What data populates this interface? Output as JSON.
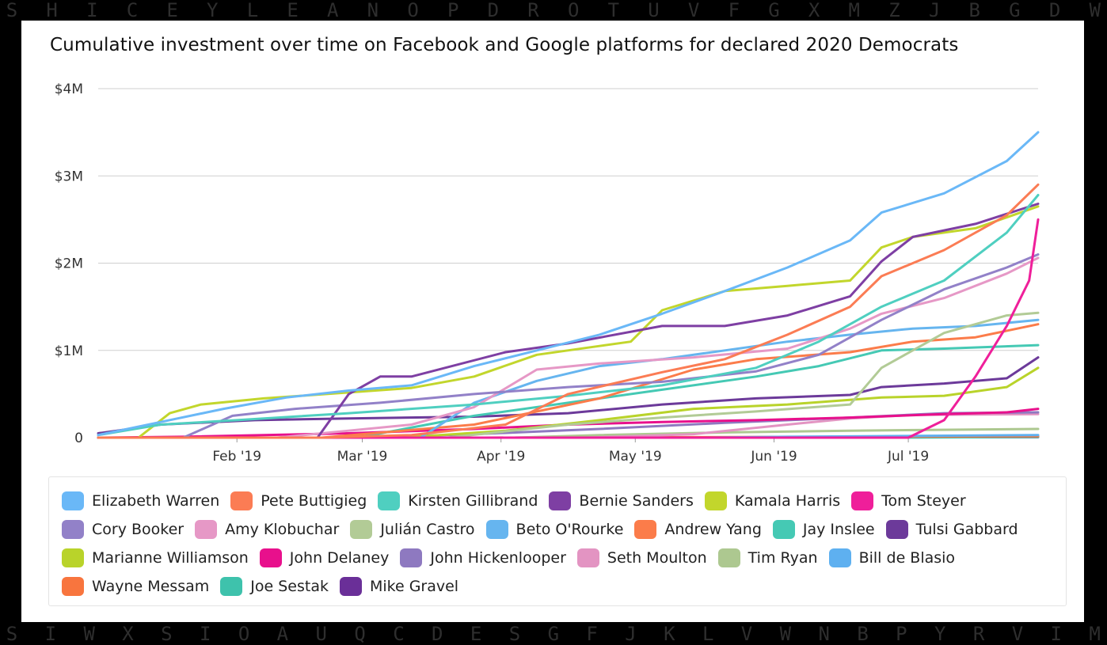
{
  "background": {
    "top_letters": [
      "S",
      "H",
      "I",
      "C",
      "E",
      "Y",
      "L",
      "E",
      "A",
      "N",
      "O",
      "P",
      "D",
      "R",
      "O",
      "T",
      "U",
      "V",
      "F",
      "G",
      "X",
      "M",
      "Z",
      "J",
      "B",
      "G",
      "D",
      "W"
    ],
    "bottom_letters": [
      "S",
      "I",
      "W",
      "X",
      "S",
      "I",
      "O",
      "A",
      "U",
      "Q",
      "C",
      "D",
      "E",
      "S",
      "G",
      "F",
      "J",
      "K",
      "L",
      "V",
      "W",
      "N",
      "B",
      "P",
      "Y",
      "R",
      "V",
      "I",
      "M"
    ]
  },
  "chart_data": {
    "type": "line",
    "title": "Cumulative investment over time on Facebook and Google platforms for declared 2020 Democrats",
    "xlabel": "",
    "ylabel": "",
    "x_range": [
      "2019-01-01",
      "2019-07-30"
    ],
    "ylim": [
      0,
      4000000
    ],
    "y_ticks": [
      0,
      1000000,
      2000000,
      3000000,
      4000000
    ],
    "y_tick_labels": [
      "0",
      "$1M",
      "$2M",
      "$3M",
      "$4M"
    ],
    "x_ticks": [
      "2019-02-01",
      "2019-03-01",
      "2019-04-01",
      "2019-05-01",
      "2019-06-01",
      "2019-07-01"
    ],
    "x_tick_labels": [
      "Feb '19",
      "Mar '19",
      "Apr '19",
      "May '19",
      "Jun '19",
      "Jul '19"
    ],
    "grid": "horizontal",
    "legend_position": "bottom",
    "series": [
      {
        "name": "Elizabeth Warren",
        "color": "#6ab8f7",
        "points": [
          [
            "2019-01-01",
            30000
          ],
          [
            "2019-01-15",
            180000
          ],
          [
            "2019-01-29",
            330000
          ],
          [
            "2019-02-12",
            460000
          ],
          [
            "2019-02-26",
            540000
          ],
          [
            "2019-03-12",
            600000
          ],
          [
            "2019-03-26",
            820000
          ],
          [
            "2019-04-09",
            1000000
          ],
          [
            "2019-04-23",
            1180000
          ],
          [
            "2019-05-07",
            1420000
          ],
          [
            "2019-05-21",
            1680000
          ],
          [
            "2019-06-04",
            1950000
          ],
          [
            "2019-06-18",
            2260000
          ],
          [
            "2019-06-25",
            2580000
          ],
          [
            "2019-07-09",
            2800000
          ],
          [
            "2019-07-23",
            3170000
          ],
          [
            "2019-07-30",
            3500000
          ]
        ]
      },
      {
        "name": "Pete Buttigieg",
        "color": "#fb7c54",
        "points": [
          [
            "2019-01-01",
            0
          ],
          [
            "2019-02-20",
            0
          ],
          [
            "2019-03-12",
            30000
          ],
          [
            "2019-04-02",
            150000
          ],
          [
            "2019-04-16",
            500000
          ],
          [
            "2019-05-07",
            750000
          ],
          [
            "2019-05-21",
            900000
          ],
          [
            "2019-06-04",
            1180000
          ],
          [
            "2019-06-18",
            1500000
          ],
          [
            "2019-06-25",
            1850000
          ],
          [
            "2019-07-09",
            2150000
          ],
          [
            "2019-07-23",
            2550000
          ],
          [
            "2019-07-30",
            2900000
          ]
        ]
      },
      {
        "name": "Kirsten Gillibrand",
        "color": "#4fcfc0",
        "points": [
          [
            "2019-01-01",
            30000
          ],
          [
            "2019-01-15",
            150000
          ],
          [
            "2019-02-01",
            200000
          ],
          [
            "2019-02-26",
            280000
          ],
          [
            "2019-03-26",
            380000
          ],
          [
            "2019-04-16",
            480000
          ],
          [
            "2019-05-07",
            600000
          ],
          [
            "2019-05-28",
            800000
          ],
          [
            "2019-06-11",
            1100000
          ],
          [
            "2019-06-25",
            1500000
          ],
          [
            "2019-07-09",
            1800000
          ],
          [
            "2019-07-23",
            2350000
          ],
          [
            "2019-07-30",
            2780000
          ]
        ]
      },
      {
        "name": "Bernie Sanders",
        "color": "#7e3fa3",
        "points": [
          [
            "2019-01-01",
            0
          ],
          [
            "2019-02-19",
            0
          ],
          [
            "2019-02-26",
            500000
          ],
          [
            "2019-03-05",
            700000
          ],
          [
            "2019-03-12",
            700000
          ],
          [
            "2019-04-02",
            980000
          ],
          [
            "2019-04-16",
            1080000
          ],
          [
            "2019-05-07",
            1280000
          ],
          [
            "2019-05-21",
            1280000
          ],
          [
            "2019-06-04",
            1400000
          ],
          [
            "2019-06-18",
            1620000
          ],
          [
            "2019-06-25",
            2020000
          ],
          [
            "2019-07-02",
            2300000
          ],
          [
            "2019-07-16",
            2450000
          ],
          [
            "2019-07-30",
            2680000
          ]
        ]
      },
      {
        "name": "Kamala Harris",
        "color": "#c2d62c",
        "points": [
          [
            "2019-01-01",
            0
          ],
          [
            "2019-01-10",
            0
          ],
          [
            "2019-01-17",
            280000
          ],
          [
            "2019-01-24",
            380000
          ],
          [
            "2019-02-07",
            450000
          ],
          [
            "2019-02-21",
            500000
          ],
          [
            "2019-03-12",
            570000
          ],
          [
            "2019-03-26",
            700000
          ],
          [
            "2019-04-09",
            950000
          ],
          [
            "2019-04-23",
            1050000
          ],
          [
            "2019-04-30",
            1100000
          ],
          [
            "2019-05-07",
            1460000
          ],
          [
            "2019-05-21",
            1680000
          ],
          [
            "2019-06-04",
            1740000
          ],
          [
            "2019-06-18",
            1800000
          ],
          [
            "2019-06-25",
            2180000
          ],
          [
            "2019-07-02",
            2300000
          ],
          [
            "2019-07-16",
            2400000
          ],
          [
            "2019-07-30",
            2650000
          ]
        ]
      },
      {
        "name": "Tom Steyer",
        "color": "#ef1f9a",
        "points": [
          [
            "2019-01-01",
            0
          ],
          [
            "2019-07-01",
            0
          ],
          [
            "2019-07-09",
            200000
          ],
          [
            "2019-07-16",
            700000
          ],
          [
            "2019-07-23",
            1280000
          ],
          [
            "2019-07-28",
            1800000
          ],
          [
            "2019-07-30",
            2500000
          ]
        ]
      },
      {
        "name": "Cory Booker",
        "color": "#9281c8",
        "points": [
          [
            "2019-01-01",
            0
          ],
          [
            "2019-01-20",
            0
          ],
          [
            "2019-01-31",
            250000
          ],
          [
            "2019-02-14",
            330000
          ],
          [
            "2019-03-05",
            400000
          ],
          [
            "2019-03-26",
            500000
          ],
          [
            "2019-04-16",
            580000
          ],
          [
            "2019-05-07",
            640000
          ],
          [
            "2019-05-28",
            760000
          ],
          [
            "2019-06-11",
            950000
          ],
          [
            "2019-06-25",
            1350000
          ],
          [
            "2019-07-09",
            1700000
          ],
          [
            "2019-07-23",
            1950000
          ],
          [
            "2019-07-30",
            2100000
          ]
        ]
      },
      {
        "name": "Amy Klobuchar",
        "color": "#e698c6",
        "points": [
          [
            "2019-01-01",
            0
          ],
          [
            "2019-02-10",
            0
          ],
          [
            "2019-03-12",
            150000
          ],
          [
            "2019-03-26",
            350000
          ],
          [
            "2019-04-09",
            780000
          ],
          [
            "2019-04-23",
            850000
          ],
          [
            "2019-05-14",
            920000
          ],
          [
            "2019-06-04",
            1020000
          ],
          [
            "2019-06-18",
            1250000
          ],
          [
            "2019-06-25",
            1420000
          ],
          [
            "2019-07-09",
            1600000
          ],
          [
            "2019-07-23",
            1880000
          ],
          [
            "2019-07-30",
            2060000
          ]
        ]
      },
      {
        "name": "Julián Castro",
        "color": "#b2cb96",
        "points": [
          [
            "2019-01-01",
            0
          ],
          [
            "2019-03-20",
            0
          ],
          [
            "2019-04-16",
            150000
          ],
          [
            "2019-05-07",
            230000
          ],
          [
            "2019-05-28",
            300000
          ],
          [
            "2019-06-18",
            380000
          ],
          [
            "2019-06-25",
            800000
          ],
          [
            "2019-07-09",
            1200000
          ],
          [
            "2019-07-23",
            1400000
          ],
          [
            "2019-07-30",
            1430000
          ]
        ]
      },
      {
        "name": "Beto O'Rourke",
        "color": "#66b5ef",
        "points": [
          [
            "2019-01-01",
            0
          ],
          [
            "2019-03-14",
            0
          ],
          [
            "2019-03-26",
            400000
          ],
          [
            "2019-04-09",
            650000
          ],
          [
            "2019-04-23",
            820000
          ],
          [
            "2019-05-07",
            900000
          ],
          [
            "2019-05-21",
            1000000
          ],
          [
            "2019-06-04",
            1100000
          ],
          [
            "2019-06-18",
            1180000
          ],
          [
            "2019-07-02",
            1250000
          ],
          [
            "2019-07-16",
            1280000
          ],
          [
            "2019-07-30",
            1350000
          ]
        ]
      },
      {
        "name": "Andrew Yang",
        "color": "#fb7c4a",
        "points": [
          [
            "2019-01-01",
            0
          ],
          [
            "2019-02-20",
            0
          ],
          [
            "2019-03-26",
            150000
          ],
          [
            "2019-04-23",
            450000
          ],
          [
            "2019-05-14",
            780000
          ],
          [
            "2019-05-28",
            900000
          ],
          [
            "2019-06-18",
            980000
          ],
          [
            "2019-07-02",
            1100000
          ],
          [
            "2019-07-16",
            1150000
          ],
          [
            "2019-07-30",
            1300000
          ]
        ]
      },
      {
        "name": "Jay Inslee",
        "color": "#45c9b4",
        "points": [
          [
            "2019-01-01",
            0
          ],
          [
            "2019-02-28",
            0
          ],
          [
            "2019-03-26",
            250000
          ],
          [
            "2019-04-16",
            400000
          ],
          [
            "2019-05-07",
            550000
          ],
          [
            "2019-05-28",
            700000
          ],
          [
            "2019-06-11",
            820000
          ],
          [
            "2019-06-25",
            1000000
          ],
          [
            "2019-07-09",
            1020000
          ],
          [
            "2019-07-30",
            1060000
          ]
        ]
      },
      {
        "name": "Tulsi Gabbard",
        "color": "#6c3a9a",
        "points": [
          [
            "2019-01-01",
            50000
          ],
          [
            "2019-01-15",
            150000
          ],
          [
            "2019-02-05",
            200000
          ],
          [
            "2019-02-26",
            220000
          ],
          [
            "2019-03-26",
            240000
          ],
          [
            "2019-04-16",
            280000
          ],
          [
            "2019-05-07",
            380000
          ],
          [
            "2019-05-28",
            450000
          ],
          [
            "2019-06-18",
            490000
          ],
          [
            "2019-06-25",
            580000
          ],
          [
            "2019-07-09",
            620000
          ],
          [
            "2019-07-23",
            680000
          ],
          [
            "2019-07-30",
            920000
          ]
        ]
      },
      {
        "name": "Marianne Williamson",
        "color": "#b9d32a",
        "points": [
          [
            "2019-01-01",
            0
          ],
          [
            "2019-03-10",
            0
          ],
          [
            "2019-04-02",
            80000
          ],
          [
            "2019-04-23",
            200000
          ],
          [
            "2019-05-14",
            330000
          ],
          [
            "2019-06-04",
            380000
          ],
          [
            "2019-06-25",
            460000
          ],
          [
            "2019-07-09",
            480000
          ],
          [
            "2019-07-23",
            580000
          ],
          [
            "2019-07-30",
            800000
          ]
        ]
      },
      {
        "name": "John Delaney",
        "color": "#e8108c",
        "points": [
          [
            "2019-01-01",
            0
          ],
          [
            "2019-01-20",
            10000
          ],
          [
            "2019-02-26",
            50000
          ],
          [
            "2019-03-26",
            100000
          ],
          [
            "2019-04-16",
            150000
          ],
          [
            "2019-05-07",
            180000
          ],
          [
            "2019-05-28",
            200000
          ],
          [
            "2019-06-18",
            230000
          ],
          [
            "2019-07-09",
            270000
          ],
          [
            "2019-07-23",
            290000
          ],
          [
            "2019-07-30",
            330000
          ]
        ]
      },
      {
        "name": "John Hickenlooper",
        "color": "#8e79c0",
        "points": [
          [
            "2019-01-01",
            0
          ],
          [
            "2019-03-01",
            0
          ],
          [
            "2019-03-26",
            40000
          ],
          [
            "2019-04-23",
            100000
          ],
          [
            "2019-05-21",
            170000
          ],
          [
            "2019-06-18",
            230000
          ],
          [
            "2019-07-09",
            280000
          ],
          [
            "2019-07-30",
            290000
          ]
        ]
      },
      {
        "name": "Seth Moulton",
        "color": "#e394c2",
        "points": [
          [
            "2019-01-01",
            0
          ],
          [
            "2019-04-20",
            0
          ],
          [
            "2019-05-14",
            40000
          ],
          [
            "2019-06-04",
            150000
          ],
          [
            "2019-06-18",
            220000
          ],
          [
            "2019-07-02",
            260000
          ],
          [
            "2019-07-30",
            270000
          ]
        ]
      },
      {
        "name": "Tim Ryan",
        "color": "#adc890",
        "points": [
          [
            "2019-01-01",
            0
          ],
          [
            "2019-04-04",
            0
          ],
          [
            "2019-04-23",
            30000
          ],
          [
            "2019-05-21",
            60000
          ],
          [
            "2019-06-18",
            80000
          ],
          [
            "2019-07-30",
            100000
          ]
        ]
      },
      {
        "name": "Bill de Blasio",
        "color": "#5eb0f0",
        "points": [
          [
            "2019-01-01",
            0
          ],
          [
            "2019-05-16",
            0
          ],
          [
            "2019-06-04",
            10000
          ],
          [
            "2019-07-30",
            30000
          ]
        ]
      },
      {
        "name": "Wayne Messam",
        "color": "#f8753e",
        "points": [
          [
            "2019-01-01",
            0
          ],
          [
            "2019-03-28",
            0
          ],
          [
            "2019-07-30",
            15000
          ]
        ]
      },
      {
        "name": "Joe Sestak",
        "color": "#3ec2ac",
        "points": [
          [
            "2019-01-01",
            0
          ],
          [
            "2019-06-23",
            0
          ],
          [
            "2019-07-30",
            8000
          ]
        ]
      },
      {
        "name": "Mike Gravel",
        "color": "#6a2f98",
        "points": [
          [
            "2019-01-01",
            0
          ],
          [
            "2019-04-02",
            0
          ],
          [
            "2019-07-30",
            5000
          ]
        ]
      }
    ]
  }
}
